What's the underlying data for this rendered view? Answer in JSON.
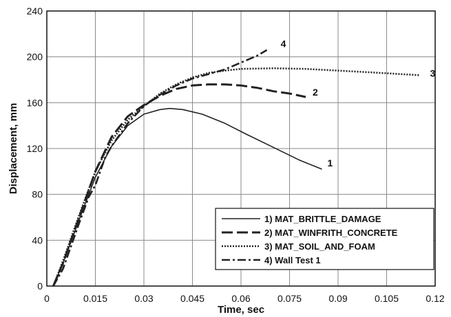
{
  "chart_data": {
    "type": "line",
    "title": "",
    "xlabel": "Time, sec",
    "ylabel": "Displacement, mm",
    "xlim": [
      0,
      0.12
    ],
    "ylim": [
      0,
      240
    ],
    "xticks": [
      "0",
      "0.015",
      "0.03",
      "0.045",
      "0.06",
      "0.075",
      "0.09",
      "0.105",
      "0.12"
    ],
    "yticks": [
      "0",
      "40",
      "80",
      "120",
      "160",
      "200",
      "240"
    ],
    "grid": true,
    "legend_position": "bottom-right",
    "series": [
      {
        "name": "1) MAT_BRITTLE_DAMAGE",
        "end_label": "1",
        "style": "solid",
        "color": "#222222",
        "points": [
          [
            0.002,
            0
          ],
          [
            0.005,
            20
          ],
          [
            0.01,
            58
          ],
          [
            0.015,
            95
          ],
          [
            0.02,
            122
          ],
          [
            0.025,
            140
          ],
          [
            0.03,
            150
          ],
          [
            0.035,
            154
          ],
          [
            0.038,
            155
          ],
          [
            0.042,
            154
          ],
          [
            0.048,
            150
          ],
          [
            0.055,
            142
          ],
          [
            0.062,
            132
          ],
          [
            0.07,
            121
          ],
          [
            0.078,
            110
          ],
          [
            0.085,
            102
          ]
        ]
      },
      {
        "name": "2) MAT_WINFRITH_CONCRETE",
        "end_label": "2",
        "style": "longdash",
        "color": "#222222",
        "points": [
          [
            0.002,
            0
          ],
          [
            0.005,
            20
          ],
          [
            0.01,
            60
          ],
          [
            0.015,
            100
          ],
          [
            0.02,
            130
          ],
          [
            0.025,
            148
          ],
          [
            0.03,
            158
          ],
          [
            0.035,
            166
          ],
          [
            0.04,
            172
          ],
          [
            0.045,
            175
          ],
          [
            0.05,
            176
          ],
          [
            0.055,
            176
          ],
          [
            0.06,
            175
          ],
          [
            0.065,
            173
          ],
          [
            0.07,
            170
          ],
          [
            0.075,
            168
          ],
          [
            0.08,
            165
          ]
        ]
      },
      {
        "name": "3) MAT_SOIL_AND_FOAM",
        "end_label": "3",
        "style": "dotted",
        "color": "#222222",
        "points": [
          [
            0.002,
            0
          ],
          [
            0.005,
            22
          ],
          [
            0.01,
            62
          ],
          [
            0.015,
            100
          ],
          [
            0.02,
            127
          ],
          [
            0.025,
            145
          ],
          [
            0.03,
            157
          ],
          [
            0.035,
            168
          ],
          [
            0.04,
            176
          ],
          [
            0.045,
            182
          ],
          [
            0.05,
            186
          ],
          [
            0.055,
            188
          ],
          [
            0.06,
            189.5
          ],
          [
            0.07,
            190
          ],
          [
            0.08,
            189.5
          ],
          [
            0.09,
            188
          ],
          [
            0.1,
            186.5
          ],
          [
            0.115,
            184
          ]
        ]
      },
      {
        "name": "4) Wall Test 1",
        "end_label": "4",
        "style": "dashdot",
        "color": "#222222",
        "points": [
          [
            0.002,
            0
          ],
          [
            0.005,
            15
          ],
          [
            0.01,
            55
          ],
          [
            0.013,
            78
          ],
          [
            0.015,
            88
          ],
          [
            0.018,
            112
          ],
          [
            0.02,
            122
          ],
          [
            0.025,
            142
          ],
          [
            0.03,
            157
          ],
          [
            0.035,
            167
          ],
          [
            0.04,
            175
          ],
          [
            0.045,
            181
          ],
          [
            0.05,
            185
          ],
          [
            0.055,
            189
          ],
          [
            0.06,
            195
          ],
          [
            0.065,
            201
          ],
          [
            0.068,
            206
          ]
        ]
      }
    ]
  }
}
